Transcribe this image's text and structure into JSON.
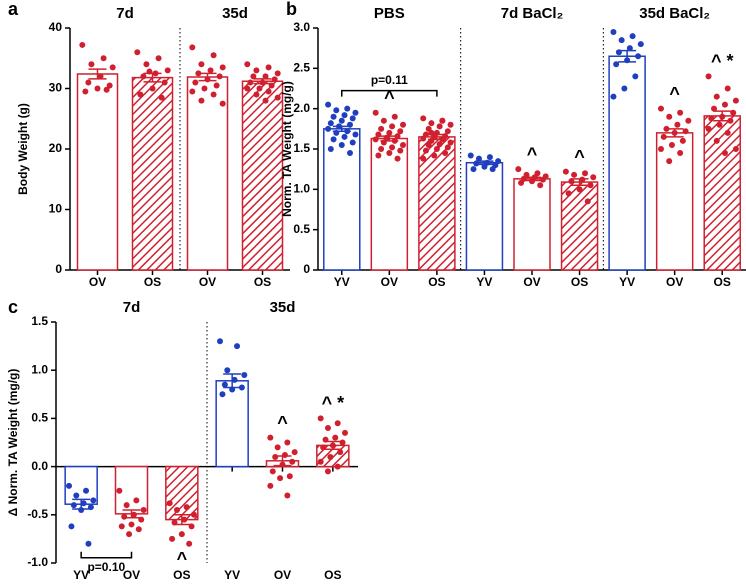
{
  "chart_data": [
    {
      "type": "bar",
      "panel": "a",
      "ylabel": "Body Weight (g)",
      "ylim": [
        0,
        40
      ],
      "yticks": [
        0,
        10,
        20,
        30,
        40
      ],
      "groups": [
        {
          "name": "7d",
          "bars": [
            {
              "category": "OV",
              "color": "#d0202f",
              "hatched": false,
              "mean": 32.4,
              "sem": 0.8,
              "points": [
                37.2,
                35,
                34,
                33.5,
                32,
                31,
                30.5,
                30,
                29.5,
                29.8
              ]
            },
            {
              "category": "OS",
              "color": "#d0202f",
              "hatched": true,
              "mean": 31.8,
              "sem": 0.7,
              "points": [
                36,
                35,
                34,
                33,
                32.5,
                32,
                31,
                30,
                29,
                28.5,
                32.8
              ]
            }
          ]
        },
        {
          "name": "35d",
          "bars": [
            {
              "category": "OV",
              "color": "#d0202f",
              "hatched": false,
              "mean": 31.9,
              "sem": 0.6,
              "points": [
                36.8,
                35.5,
                34,
                33.5,
                33,
                32.5,
                32,
                31.5,
                31,
                30.5,
                30,
                29.5,
                29,
                28,
                27.5
              ]
            },
            {
              "category": "OS",
              "color": "#d0202f",
              "hatched": true,
              "mean": 31.2,
              "sem": 0.4,
              "points": [
                34,
                33.5,
                33,
                32.5,
                32,
                32,
                31.5,
                31,
                31,
                30.5,
                30,
                30,
                29.5,
                29,
                28.5,
                28
              ]
            }
          ]
        }
      ]
    },
    {
      "type": "bar",
      "panel": "b",
      "ylabel": "Norm. TA Weight (mg/g)",
      "ylim": [
        0,
        3
      ],
      "yticks": [
        0,
        0.5,
        {
          "value": 1,
          "label": "1.0"
        },
        1.5,
        {
          "value": 2,
          "label": "2.0"
        },
        2.5,
        {
          "value": 3,
          "label": "3.0"
        }
      ],
      "groups": [
        {
          "name": "PBS",
          "bracket": {
            "label": "p=0.11",
            "between": [
              "YV",
              "OS"
            ]
          },
          "bars": [
            {
              "category": "YV",
              "color": "#1f3fbf",
              "hatched": false,
              "mean": 1.75,
              "sem": 0.03,
              "points": [
                2.05,
                2.0,
                1.98,
                1.95,
                1.92,
                1.9,
                1.88,
                1.85,
                1.82,
                1.8,
                1.78,
                1.75,
                1.72,
                1.7,
                1.68,
                1.65,
                1.62,
                1.58,
                1.55,
                1.5,
                1.45
              ]
            },
            {
              "category": "OV",
              "color": "#d0202f",
              "hatched": false,
              "mean": 1.63,
              "sem": 0.03,
              "annotation": "^",
              "points": [
                1.95,
                1.9,
                1.85,
                1.8,
                1.78,
                1.75,
                1.72,
                1.7,
                1.68,
                1.66,
                1.64,
                1.62,
                1.6,
                1.58,
                1.55,
                1.52,
                1.5,
                1.48,
                1.45,
                1.42,
                1.38
              ]
            },
            {
              "category": "OS",
              "color": "#d0202f",
              "hatched": true,
              "mean": 1.65,
              "sem": 0.03,
              "points": [
                1.88,
                1.85,
                1.82,
                1.8,
                1.78,
                1.75,
                1.72,
                1.7,
                1.68,
                1.66,
                1.65,
                1.63,
                1.62,
                1.6,
                1.58,
                1.56,
                1.55,
                1.52,
                1.5,
                1.48,
                1.45,
                1.42,
                1.38,
                1.85,
                1.7
              ]
            }
          ]
        },
        {
          "name": "7d BaCl₂",
          "bars": [
            {
              "category": "YV",
              "color": "#1f3fbf",
              "hatched": false,
              "mean": 1.33,
              "sem": 0.02,
              "points": [
                1.42,
                1.4,
                1.38,
                1.35,
                1.33,
                1.32,
                1.3,
                1.28,
                1.25,
                1.25
              ]
            },
            {
              "category": "OV",
              "color": "#d0202f",
              "hatched": false,
              "mean": 1.13,
              "sem": 0.02,
              "annotation": "^",
              "points": [
                1.25,
                1.2,
                1.18,
                1.16,
                1.15,
                1.13,
                1.12,
                1.1,
                1.08,
                1.05
              ]
            },
            {
              "category": "OS",
              "color": "#d0202f",
              "hatched": true,
              "mean": 1.09,
              "sem": 0.04,
              "annotation": "^",
              "points": [
                1.22,
                1.2,
                1.18,
                1.15,
                1.12,
                1.1,
                1.05,
                1.0,
                0.95,
                0.85
              ]
            }
          ]
        },
        {
          "name": "35d BaCl₂",
          "bars": [
            {
              "category": "YV",
              "color": "#1f3fbf",
              "hatched": false,
              "mean": 2.65,
              "sem": 0.07,
              "points": [
                2.95,
                2.9,
                2.85,
                2.8,
                2.75,
                2.7,
                2.65,
                2.6,
                2.55,
                2.4,
                2.25,
                2.15
              ]
            },
            {
              "category": "OV",
              "color": "#d0202f",
              "hatched": false,
              "mean": 1.7,
              "sem": 0.05,
              "annotation": "^",
              "points": [
                2.0,
                1.95,
                1.9,
                1.85,
                1.8,
                1.75,
                1.72,
                1.7,
                1.65,
                1.6,
                1.55,
                1.5,
                1.45,
                1.35
              ]
            },
            {
              "category": "OS",
              "color": "#d0202f",
              "hatched": true,
              "mean": 1.91,
              "sem": 0.06,
              "annotation": "^ *",
              "points": [
                2.4,
                2.25,
                2.15,
                2.1,
                2.05,
                2.0,
                1.95,
                1.9,
                1.88,
                1.85,
                1.8,
                1.75,
                1.7,
                1.6,
                1.5,
                1.45
              ]
            }
          ]
        }
      ]
    },
    {
      "type": "bar",
      "panel": "c",
      "ylabel": "Δ Norm. TA Weight (mg/g)",
      "ylim": [
        -1,
        1.5
      ],
      "yticks": [
        {
          "value": -1,
          "label": "-1.0"
        },
        -0.5,
        {
          "value": 0,
          "label": "0.0"
        },
        0.5,
        {
          "value": 1,
          "label": "1.0"
        },
        1.5
      ],
      "groups": [
        {
          "name": "7d",
          "bracket": {
            "label": "p=0.10",
            "between": [
              "YV",
              "OV"
            ]
          },
          "bars": [
            {
              "category": "YV",
              "color": "#1f3fbf",
              "hatched": false,
              "mean": -0.39,
              "sem": 0.05,
              "points": [
                -0.2,
                -0.25,
                -0.3,
                -0.35,
                -0.38,
                -0.4,
                -0.42,
                -0.45,
                -0.62,
                -0.8
              ]
            },
            {
              "category": "OV",
              "color": "#d0202f",
              "hatched": false,
              "mean": -0.49,
              "sem": 0.04,
              "points": [
                -0.25,
                -0.35,
                -0.4,
                -0.45,
                -0.5,
                -0.52,
                -0.55,
                -0.6,
                -0.62,
                -0.65,
                -0.7
              ]
            },
            {
              "category": "OS",
              "color": "#d0202f",
              "hatched": true,
              "mean": -0.55,
              "sem": 0.05,
              "annotation": "^",
              "points": [
                -0.38,
                -0.42,
                -0.45,
                -0.5,
                -0.55,
                -0.58,
                -0.62,
                -0.7,
                -0.75,
                -0.8
              ]
            }
          ]
        },
        {
          "name": "35d",
          "bars": [
            {
              "category": "YV",
              "color": "#1f3fbf",
              "hatched": false,
              "mean": 0.89,
              "sem": 0.07,
              "points": [
                1.3,
                1.25,
                1.0,
                0.95,
                0.9,
                0.85,
                0.82,
                0.8,
                0.75
              ]
            },
            {
              "category": "OV",
              "color": "#d0202f",
              "hatched": false,
              "mean": 0.06,
              "sem": 0.05,
              "annotation": "^",
              "points": [
                0.3,
                0.25,
                0.2,
                0.15,
                0.12,
                0.1,
                0.05,
                0.02,
                -0.05,
                -0.1,
                -0.12,
                -0.2,
                -0.3
              ]
            },
            {
              "category": "OS",
              "color": "#d0202f",
              "hatched": true,
              "mean": 0.22,
              "sem": 0.04,
              "annotation": "^ *",
              "points": [
                0.5,
                0.45,
                0.4,
                0.35,
                0.3,
                0.28,
                0.25,
                0.22,
                0.2,
                0.15,
                0.1,
                0.05,
                0.0,
                -0.05
              ]
            }
          ]
        }
      ]
    }
  ]
}
